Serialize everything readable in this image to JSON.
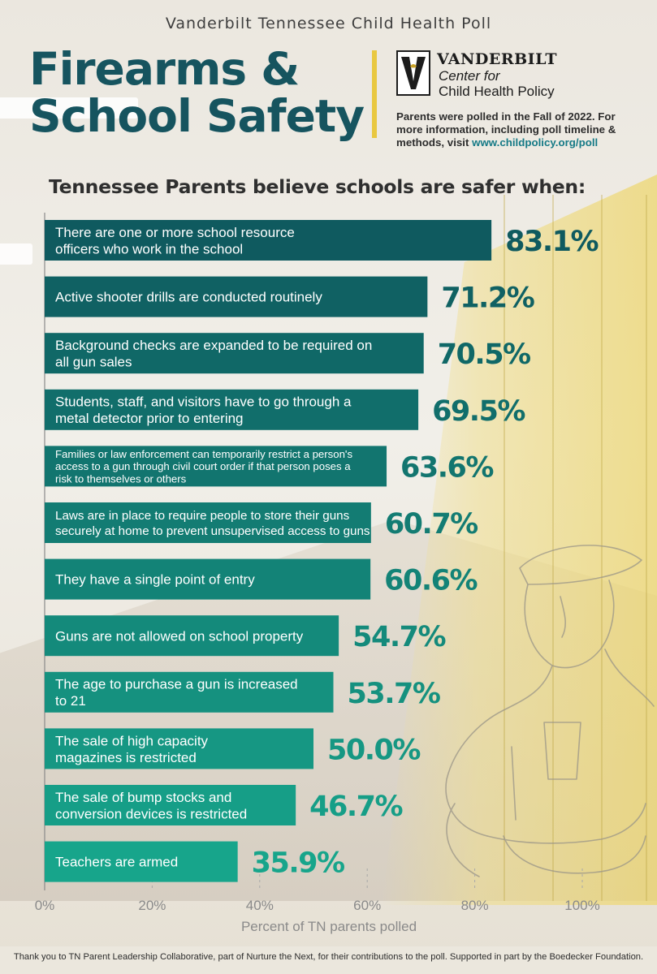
{
  "header": {
    "poll_title": "Vanderbilt Tennessee Child Health Poll",
    "title_line1": "Firearms &",
    "title_line2": "School Safety",
    "org_name": "VANDERBILT",
    "org_sub1": "Center for",
    "org_sub2": "Child Health Policy",
    "poll_note": "Parents were polled in the Fall of 2022. For more information, including poll timeline & methods, visit",
    "poll_link": "www.childpolicy.org/poll"
  },
  "subtitle": "Tennessee Parents believe schools are safer when:",
  "colors": {
    "title": "#16545f",
    "bar_dark": "#0f5a5f",
    "bar_light": "#17a58b",
    "accent_gold": "#e9c840"
  },
  "chart_data": {
    "type": "bar",
    "orientation": "horizontal",
    "title": "Tennessee Parents believe schools are safer when:",
    "xlabel": "Percent of TN parents polled",
    "ylabel": "",
    "xlim": [
      0,
      100
    ],
    "x_ticks": [
      "0%",
      "20%",
      "40%",
      "60%",
      "80%",
      "100%"
    ],
    "grid": true,
    "legend": "none",
    "categories": [
      [
        "There are one or more school resource",
        "officers who work in the school"
      ],
      [
        "Active shooter drills are conducted routinely"
      ],
      [
        "Background checks are expanded to be required on",
        "all gun sales"
      ],
      [
        "Students, staff, and visitors have to go through a",
        "metal detector prior to entering"
      ],
      [
        "Families or law enforcement can temporarily restrict a person's",
        "access to a gun through civil court order if that person poses a",
        "risk to themselves or others"
      ],
      [
        "Laws are in place to require people to store their guns",
        "securely at home to prevent unsupervised access to guns"
      ],
      [
        "They have a single point of entry"
      ],
      [
        "Guns are not allowed on school property"
      ],
      [
        "The age to purchase a gun is increased",
        "to 21"
      ],
      [
        "The sale of high capacity",
        "magazines is restricted"
      ],
      [
        "The sale of bump stocks and",
        "conversion devices is restricted"
      ],
      [
        "Teachers are armed"
      ]
    ],
    "values": [
      83.1,
      71.2,
      70.5,
      69.5,
      63.6,
      60.7,
      60.6,
      54.7,
      53.7,
      50.0,
      46.7,
      35.9
    ],
    "value_labels": [
      "83.1%",
      "71.2%",
      "70.5%",
      "69.5%",
      "63.6%",
      "60.7%",
      "60.6%",
      "54.7%",
      "53.7%",
      "50.0%",
      "46.7%",
      "35.9%"
    ]
  },
  "footer": "Thank you to TN Parent Leadership Collaborative, part of Nurture the Next, for their contributions to the poll. Supported in part by the Boedecker Foundation."
}
